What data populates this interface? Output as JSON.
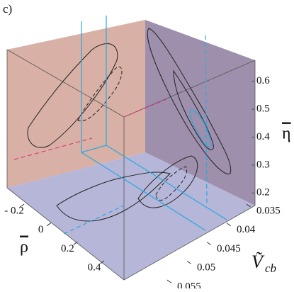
{
  "chart_data": {
    "type": "3d-box",
    "panel_label": "c)",
    "x_label": "ρ",
    "y_label": "Ṽ",
    "y_label_sub": "cb",
    "z_label": "η",
    "xlim": [
      -0.3,
      0.5
    ],
    "xticks": [
      {
        "value": -0.2,
        "label": "- 0.2"
      },
      0,
      0.2,
      0.4
    ],
    "ylim": [
      0.033,
      0.057
    ],
    "yticks": [
      0.035,
      0.04,
      0.045,
      0.05,
      0.055
    ],
    "zlim": [
      0.15,
      0.65
    ],
    "zticks": [
      0.2,
      0.3,
      0.4,
      0.5,
      0.6
    ],
    "label_color": "#1aa0dc",
    "z_label_color": "#d6336f"
  }
}
